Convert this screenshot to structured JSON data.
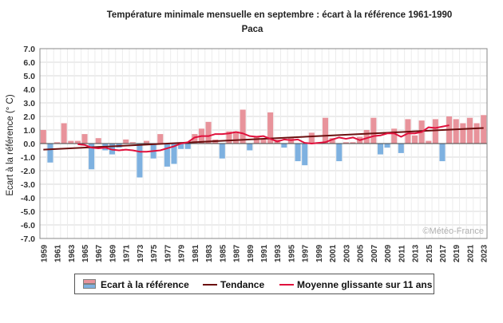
{
  "chart_data": {
    "type": "bar",
    "title": "Température minimale mensuelle en septembre : écart à la référence 1961-1990",
    "subtitle": "Paca",
    "ylabel": "Ecart à la référence (° C)",
    "xlabel": "",
    "ylim": [
      -7.0,
      7.0
    ],
    "yticks": [
      "7.0",
      "6.0",
      "5.0",
      "4.0",
      "3.0",
      "2.0",
      "1.0",
      "0.0",
      "-1.0",
      "-2.0",
      "-3.0",
      "-4.0",
      "-5.0",
      "-6.0",
      "-7.0"
    ],
    "ytick_values": [
      7,
      6,
      5,
      4,
      3,
      2,
      1,
      0,
      -1,
      -2,
      -3,
      -4,
      -5,
      -6,
      -7
    ],
    "grid": true,
    "watermark": "©Météo-France",
    "x": [
      1959,
      1960,
      1961,
      1962,
      1963,
      1964,
      1965,
      1966,
      1967,
      1968,
      1969,
      1970,
      1971,
      1972,
      1973,
      1974,
      1975,
      1976,
      1977,
      1978,
      1979,
      1980,
      1981,
      1982,
      1983,
      1984,
      1985,
      1986,
      1987,
      1988,
      1989,
      1990,
      1991,
      1992,
      1993,
      1994,
      1995,
      1996,
      1997,
      1998,
      1999,
      2000,
      2001,
      2002,
      2003,
      2004,
      2005,
      2006,
      2007,
      2008,
      2009,
      2010,
      2011,
      2012,
      2013,
      2014,
      2015,
      2016,
      2017,
      2018,
      2019,
      2020,
      2021,
      2022,
      2023
    ],
    "xtick_labels": [
      "1959",
      "1961",
      "1963",
      "1965",
      "1967",
      "1969",
      "1971",
      "1973",
      "1975",
      "1977",
      "1979",
      "1981",
      "1983",
      "1985",
      "1987",
      "1989",
      "1991",
      "1993",
      "1995",
      "1997",
      "1999",
      "2001",
      "2003",
      "2005",
      "2007",
      "2009",
      "2011",
      "2013",
      "2015",
      "2017",
      "2019",
      "2021",
      "2023"
    ],
    "series": [
      {
        "name": "Ecart à la référence",
        "values": [
          1.0,
          -1.4,
          0.1,
          1.5,
          0.2,
          0.2,
          0.7,
          -1.9,
          0.4,
          -0.5,
          -0.8,
          -0.3,
          0.3,
          0.1,
          -2.5,
          0.2,
          -1.1,
          0.7,
          -1.7,
          -1.5,
          -0.4,
          -0.4,
          0.7,
          1.1,
          1.6,
          0.3,
          -1.1,
          0.9,
          0.9,
          2.5,
          -0.5,
          0.5,
          0.3,
          2.3,
          0.3,
          -0.3,
          0.4,
          -1.3,
          -1.6,
          0.8,
          0.1,
          1.9,
          0.4,
          -1.3,
          0.1,
          0.1,
          0.5,
          1.0,
          1.9,
          -0.8,
          -0.3,
          1.1,
          -0.7,
          1.8,
          0.6,
          1.7,
          0.2,
          1.8,
          -1.3,
          2.0,
          1.8,
          1.5,
          1.9,
          1.5,
          2.1
        ],
        "up_color": "#e8939b",
        "down_color": "#7eb1e0"
      },
      {
        "name": "Tendance",
        "type": "line",
        "start": [
          1959,
          -0.45
        ],
        "end": [
          2023,
          1.15
        ],
        "color": "#6b0f0f"
      },
      {
        "name": "Moyenne glissante sur 11 ans",
        "type": "line",
        "x": [
          1964,
          1965,
          1966,
          1967,
          1968,
          1969,
          1970,
          1971,
          1972,
          1973,
          1974,
          1975,
          1976,
          1977,
          1978,
          1979,
          1980,
          1981,
          1982,
          1983,
          1984,
          1985,
          1986,
          1987,
          1988,
          1989,
          1990,
          1991,
          1992,
          1993,
          1994,
          1995,
          1996,
          1997,
          1998,
          1999,
          2000,
          2001,
          2002,
          2003,
          2004,
          2005,
          2006,
          2007,
          2008,
          2009,
          2010,
          2011,
          2012,
          2013,
          2014,
          2015,
          2016,
          2017,
          2018
        ],
        "values": [
          -0.05,
          -0.1,
          -0.3,
          -0.35,
          -0.3,
          -0.45,
          -0.5,
          -0.45,
          -0.5,
          -0.6,
          -0.6,
          -0.55,
          -0.5,
          -0.35,
          -0.2,
          0.0,
          0.1,
          0.45,
          0.55,
          0.55,
          0.7,
          0.7,
          0.75,
          0.85,
          0.75,
          0.55,
          0.5,
          0.55,
          0.35,
          0.15,
          0.3,
          0.25,
          0.3,
          0.05,
          0.0,
          0.05,
          0.1,
          0.3,
          0.45,
          0.35,
          0.45,
          0.25,
          0.4,
          0.55,
          0.6,
          0.75,
          0.75,
          0.5,
          0.75,
          0.75,
          0.85,
          1.2,
          1.15,
          1.25,
          1.35
        ],
        "color": "#e0103c"
      }
    ],
    "legend": {
      "position": "bottom",
      "items": [
        "Ecart à la référence",
        "Tendance",
        "Moyenne glissante sur 11 ans"
      ]
    }
  }
}
